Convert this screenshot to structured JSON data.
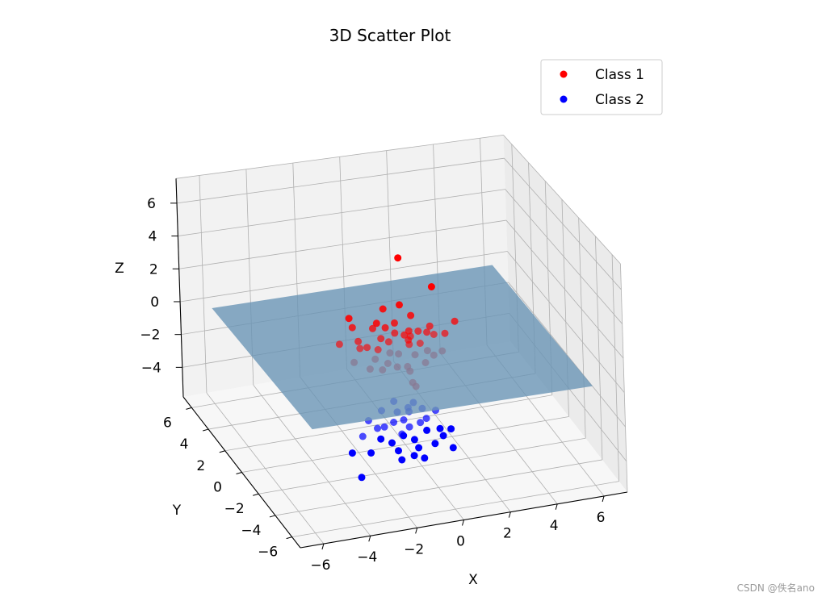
{
  "chart_data": {
    "type": "scatter",
    "dimensions": 3,
    "title": "3D Scatter Plot",
    "xlabel": "X",
    "ylabel": "Y",
    "zlabel": "Z",
    "x_ticks": [
      -6,
      -4,
      -2,
      0,
      2,
      4,
      6
    ],
    "y_ticks": [
      -6,
      -4,
      -2,
      0,
      2,
      4,
      6
    ],
    "z_ticks": [
      -4,
      -2,
      0,
      2,
      4,
      6
    ],
    "xlim": [
      -7,
      7
    ],
    "ylim": [
      -7,
      7
    ],
    "zlim": [
      -5.8,
      7.5
    ],
    "grid": true,
    "legend_position": "top-right",
    "plane": {
      "z": 0,
      "x_range": [
        -6,
        6
      ],
      "y_range": [
        -6,
        6
      ],
      "color": "#6a95b5"
    },
    "series": [
      {
        "name": "Class 1",
        "color": "#ff0000",
        "points": [
          [
            0.0,
            0.2,
            5.2
          ],
          [
            1.5,
            0.5,
            3.0
          ],
          [
            -2.3,
            -0.2,
            2.3
          ],
          [
            2.2,
            -0.2,
            1.2
          ],
          [
            0.0,
            0.2,
            2.4
          ],
          [
            -0.6,
            0.5,
            2.1
          ],
          [
            -1.2,
            -0.4,
            1.9
          ],
          [
            0.4,
            0.0,
            1.8
          ],
          [
            -0.3,
            0.0,
            1.5
          ],
          [
            -2.0,
            0.3,
            1.4
          ],
          [
            -0.7,
            0.0,
            1.3
          ],
          [
            -1.1,
            0.4,
            1.1
          ],
          [
            0.3,
            0.0,
            0.9
          ],
          [
            1.3,
            0.3,
            0.8
          ],
          [
            -0.9,
            0.0,
            0.7
          ],
          [
            0.0,
            -0.3,
            0.9
          ],
          [
            -0.2,
            0.3,
            0.7
          ],
          [
            0.8,
            0.3,
            0.6
          ],
          [
            -1.8,
            0.2,
            0.6
          ],
          [
            -2.5,
            0.5,
            0.4
          ],
          [
            -1.5,
            0.0,
            0.3
          ],
          [
            -0.5,
            0.2,
            0.3
          ],
          [
            0.2,
            -0.2,
            0.5
          ],
          [
            0.5,
            0.4,
            0.3
          ],
          [
            1.1,
            0.1,
            0.6
          ],
          [
            1.8,
            -0.1,
            0.5
          ],
          [
            1.5,
            0.4,
            0.2
          ],
          [
            -1.7,
            0.3,
            0.1
          ],
          [
            -1.0,
            0.1,
            0.0
          ],
          [
            0.3,
            0.0,
            0.1
          ],
          [
            -0.6,
            -0.2,
            -0.1
          ],
          [
            0.8,
            0.1,
            0.0
          ],
          [
            1.0,
            -0.2,
            -0.3
          ],
          [
            -1.2,
            -0.1,
            -0.4
          ],
          [
            -0.2,
            -0.1,
            -0.3
          ],
          [
            0.5,
            -0.1,
            -0.5
          ],
          [
            1.3,
            -0.1,
            -0.7
          ],
          [
            -2.0,
            0.2,
            -0.6
          ],
          [
            -1.5,
            -0.3,
            -0.8
          ],
          [
            -0.6,
            0.1,
            -0.9
          ],
          [
            0.1,
            -0.3,
            -1.0
          ],
          [
            0.9,
            -0.2,
            -1.0
          ],
          [
            -0.2,
            0.1,
            -1.2
          ],
          [
            0.3,
            0.0,
            -1.5
          ],
          [
            0.4,
            0.0,
            -2.2
          ],
          [
            0.6,
            0.2,
            -2.6
          ],
          [
            -0.8,
            0.2,
            -1.3
          ],
          [
            1.8,
            0.3,
            -0.8
          ]
        ]
      },
      {
        "name": "Class 2",
        "color": "#0000ff",
        "points": [
          [
            -0.4,
            0.1,
            -3.2
          ],
          [
            0.1,
            -0.2,
            -3.5
          ],
          [
            0.5,
            0.3,
            -3.6
          ],
          [
            -0.9,
            0.2,
            -3.7
          ],
          [
            -0.3,
            0.0,
            -3.8
          ],
          [
            0.8,
            0.1,
            -3.9
          ],
          [
            1.3,
            -0.1,
            -4.0
          ],
          [
            -1.5,
            0.1,
            -4.1
          ],
          [
            0.3,
            0.3,
            -4.1
          ],
          [
            -0.5,
            -0.1,
            -4.3
          ],
          [
            0.0,
            0.1,
            -4.4
          ],
          [
            -1.2,
            -0.1,
            -4.5
          ],
          [
            0.6,
            -0.2,
            -4.5
          ],
          [
            1.0,
            0.2,
            -4.6
          ],
          [
            -0.8,
            0.2,
            -4.7
          ],
          [
            0.2,
            0.0,
            -4.8
          ],
          [
            -1.8,
            0.0,
            -4.9
          ],
          [
            -0.2,
            -0.2,
            -5.0
          ],
          [
            0.9,
            -0.1,
            -5.1
          ],
          [
            1.5,
            0.0,
            -5.2
          ],
          [
            -1.0,
            0.1,
            -5.3
          ],
          [
            0.0,
            0.2,
            -5.4
          ],
          [
            -0.6,
            -0.1,
            -5.5
          ],
          [
            0.4,
            0.0,
            -5.6
          ],
          [
            2.0,
            0.1,
            -5.4
          ],
          [
            -2.3,
            -0.1,
            -5.7
          ],
          [
            1.2,
            -0.2,
            -5.9
          ],
          [
            -0.3,
            0.0,
            -6.1
          ],
          [
            0.6,
            0.1,
            -6.2
          ],
          [
            -1.4,
            0.2,
            -6.1
          ],
          [
            2.0,
            -0.1,
            -6.4
          ],
          [
            -0.2,
            -0.1,
            -6.6
          ],
          [
            0.8,
            0.0,
            -6.8
          ],
          [
            -1.9,
            0.0,
            -7.3
          ],
          [
            0.3,
            -0.2,
            -6.4
          ],
          [
            1.7,
            0.2,
            -5.8
          ]
        ]
      }
    ]
  },
  "watermark": "CSDN @佚名ano"
}
